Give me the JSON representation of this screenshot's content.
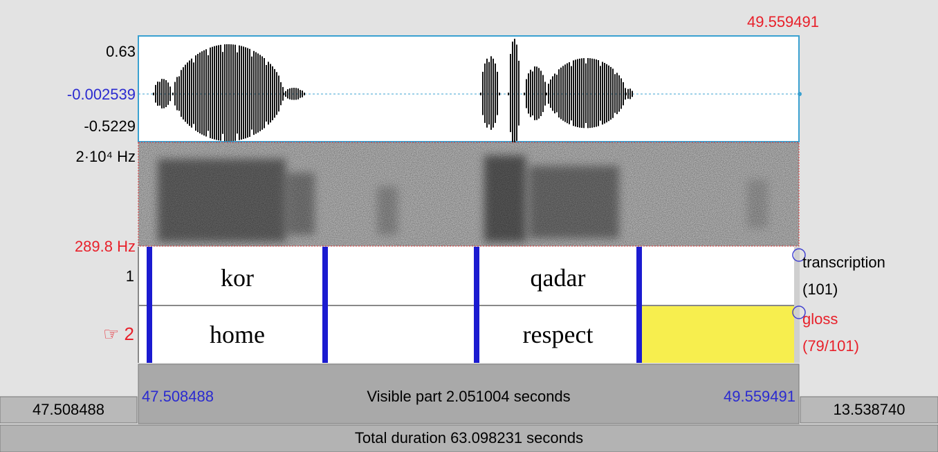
{
  "editor": {
    "cursor_time": "49.559491",
    "waveform": {
      "max": "0.63",
      "cursor_value": "-0.002539",
      "min": "-0.5229"
    },
    "spectrogram": {
      "max_frequency": "2·10⁴ Hz",
      "min_frequency": "289.8 Hz"
    },
    "tiers": [
      {
        "number": "1",
        "intervals": [
          "kor",
          "qadar"
        ],
        "name": "transcription",
        "count": "(101)"
      },
      {
        "number": "☞ 2",
        "intervals": [
          "home",
          "respect"
        ],
        "name": "gloss",
        "count": "(79/101)"
      }
    ],
    "visible": {
      "start": "47.508488",
      "label": "Visible part 2.051004 seconds",
      "end": "49.559491"
    },
    "left_time": "47.508488",
    "right_time": "13.538740",
    "total": "Total duration 63.098231 seconds"
  }
}
